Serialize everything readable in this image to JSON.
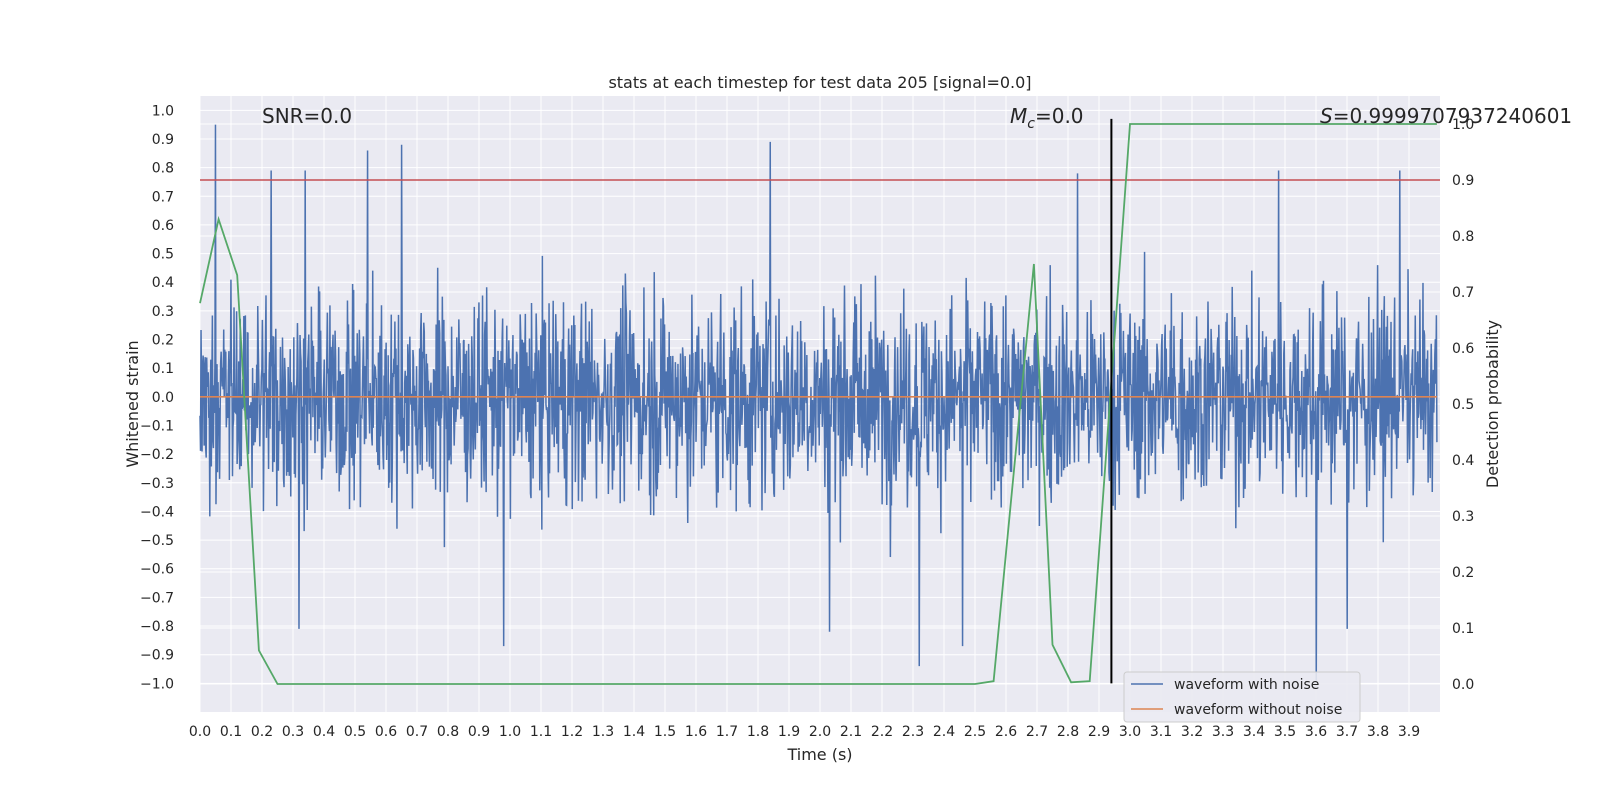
{
  "chart_data": {
    "type": "line",
    "title": "stats at each timestep for test data 205 [signal=0.0]",
    "xlabel": "Time (s)",
    "ylabel": "Whitened strain",
    "y2label": "Detection probability",
    "xlim": [
      0.0,
      4.0
    ],
    "ylim": [
      -1.1,
      1.05
    ],
    "y2lim": [
      -0.05,
      1.05
    ],
    "xticks": [
      "0.0",
      "0.1",
      "0.2",
      "0.3",
      "0.4",
      "0.5",
      "0.6",
      "0.7",
      "0.8",
      "0.9",
      "1.0",
      "1.1",
      "1.2",
      "1.3",
      "1.4",
      "1.5",
      "1.6",
      "1.7",
      "1.8",
      "1.9",
      "2.0",
      "2.1",
      "2.2",
      "2.3",
      "2.4",
      "2.5",
      "2.6",
      "2.7",
      "2.8",
      "2.9",
      "3.0",
      "3.1",
      "3.2",
      "3.3",
      "3.4",
      "3.5",
      "3.6",
      "3.7",
      "3.8",
      "3.9"
    ],
    "yticks": [
      "1.0",
      "0.9",
      "0.8",
      "0.7",
      "0.6",
      "0.5",
      "0.4",
      "0.3",
      "0.2",
      "0.1",
      "0.0",
      "−0.1",
      "−0.2",
      "−0.3",
      "−0.4",
      "−0.5",
      "−0.6",
      "−0.7",
      "−0.8",
      "−0.9",
      "−1.0"
    ],
    "y2ticks": [
      "1.0",
      "0.9",
      "0.8",
      "0.7",
      "0.6",
      "0.5",
      "0.4",
      "0.3",
      "0.2",
      "0.1",
      "0.0"
    ],
    "grid": true,
    "legend_position": "lower-right",
    "annotations": {
      "snr": "SNR=0.0",
      "mc_symbol": "M",
      "mc_sub": "c",
      "mc_value": "=0.0",
      "s_symbol": "S",
      "s_value": "=0.9999707937240601"
    },
    "series": [
      {
        "name": "waveform with noise",
        "color": "#4c72b0",
        "kind": "noise",
        "x_range": [
          0.0,
          3.99
        ],
        "typical_range": [
          -0.45,
          0.45
        ],
        "peaks": [
          {
            "x": 0.05,
            "y": 0.95
          },
          {
            "x": 0.23,
            "y": 0.79
          },
          {
            "x": 0.34,
            "y": 0.79
          },
          {
            "x": 0.54,
            "y": 0.86
          },
          {
            "x": 0.65,
            "y": 0.88
          },
          {
            "x": 1.84,
            "y": 0.89
          },
          {
            "x": 2.83,
            "y": 0.78
          },
          {
            "x": 3.48,
            "y": 0.79
          },
          {
            "x": 3.87,
            "y": 0.79
          },
          {
            "x": 0.32,
            "y": -0.81
          },
          {
            "x": 0.98,
            "y": -0.87
          },
          {
            "x": 2.03,
            "y": -0.82
          },
          {
            "x": 2.32,
            "y": -0.94
          },
          {
            "x": 2.46,
            "y": -0.87
          },
          {
            "x": 3.6,
            "y": -0.99
          },
          {
            "x": 3.7,
            "y": -0.81
          }
        ]
      },
      {
        "name": "waveform without noise",
        "color": "#dd8452",
        "x": [
          0.0,
          3.99
        ],
        "y": [
          0.0,
          0.0
        ]
      },
      {
        "color": "#55a868",
        "axis": "right",
        "x": [
          0.0,
          0.06,
          0.12,
          0.19,
          0.25,
          0.5,
          2.5,
          2.56,
          2.69,
          2.75,
          2.81,
          2.87,
          3.0,
          3.99
        ],
        "y": [
          0.68,
          0.83,
          0.73,
          0.06,
          0.0,
          0.0,
          0.0,
          0.005,
          0.75,
          0.07,
          0.003,
          0.005,
          1.0,
          1.0
        ]
      }
    ],
    "hlines": [
      {
        "axis": "right",
        "y": 0.9,
        "color": "#c44e52"
      }
    ],
    "vlines": [
      {
        "x": 2.94,
        "color": "#000000",
        "ymin": -1.0,
        "ymax": 0.97
      }
    ]
  }
}
